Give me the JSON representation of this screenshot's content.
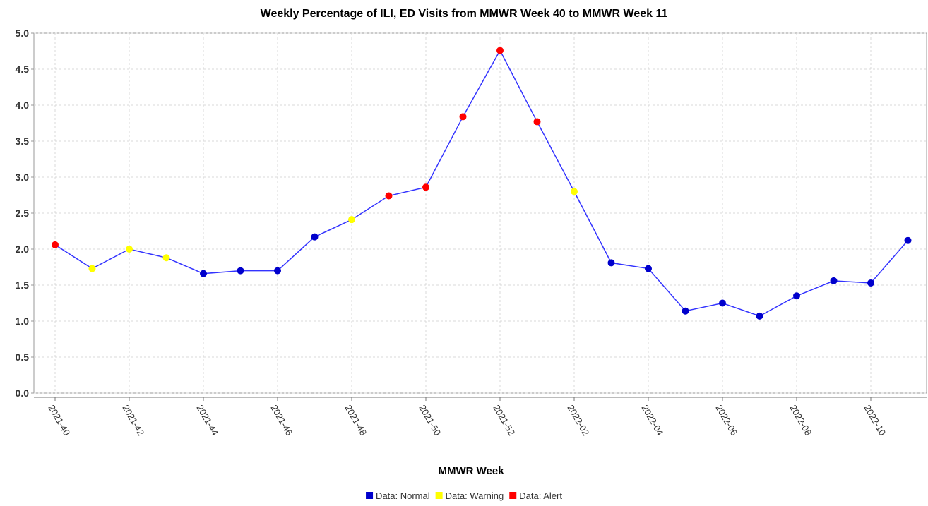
{
  "chart_data": {
    "type": "line",
    "title": "Weekly Percentage of ILI, ED Visits from MMWR Week 40 to MMWR Week 11",
    "x_label": "MMWR Week",
    "categories": [
      "2021-40",
      null,
      "2021-42",
      null,
      "2021-44",
      null,
      "2021-46",
      null,
      "2021-48",
      null,
      "2021-50",
      null,
      "2021-52",
      null,
      "2022-02",
      null,
      "2022-04",
      null,
      "2022-06",
      null,
      "2022-08",
      null,
      "2022-10",
      null
    ],
    "values": [
      2.06,
      1.73,
      2.0,
      1.88,
      1.66,
      1.7,
      1.7,
      2.17,
      2.41,
      2.74,
      2.86,
      3.84,
      4.76,
      3.77,
      2.8,
      1.81,
      1.73,
      1.14,
      1.25,
      1.07,
      1.35,
      1.56,
      1.53,
      2.12
    ],
    "line_color": "#3333ff",
    "point_colors": [
      "#ff0000",
      "#ffff00",
      "#ffff00",
      "#ffff00",
      "#0000cc",
      "#0000cc",
      "#0000cc",
      "#0000cc",
      "#ffff00",
      "#ff0000",
      "#ff0000",
      "#ff0000",
      "#ff0000",
      "#ff0000",
      "#ffff00",
      "#0000cc",
      "#0000cc",
      "#0000cc",
      "#0000cc",
      "#0000cc",
      "#0000cc",
      "#0000cc",
      "#0000cc",
      "#0000cc"
    ],
    "legend": [
      {
        "name": "Data: Normal",
        "color": "#0000cc"
      },
      {
        "name": "Data: Warning",
        "color": "#ffff00"
      },
      {
        "name": "Data: Alert",
        "color": "#ff0000"
      }
    ],
    "ylim": [
      0,
      5
    ],
    "yticks": [
      {
        "value": 0,
        "label": "0.0"
      },
      0.5,
      {
        "value": 1,
        "label": "1.0"
      },
      1.5,
      {
        "value": 2,
        "label": "2.0"
      },
      2.5,
      {
        "value": 3,
        "label": "3.0"
      },
      3.5,
      {
        "value": 4,
        "label": "4.0"
      },
      4.5,
      {
        "value": 5,
        "label": "5.0"
      }
    ],
    "grid": true
  }
}
